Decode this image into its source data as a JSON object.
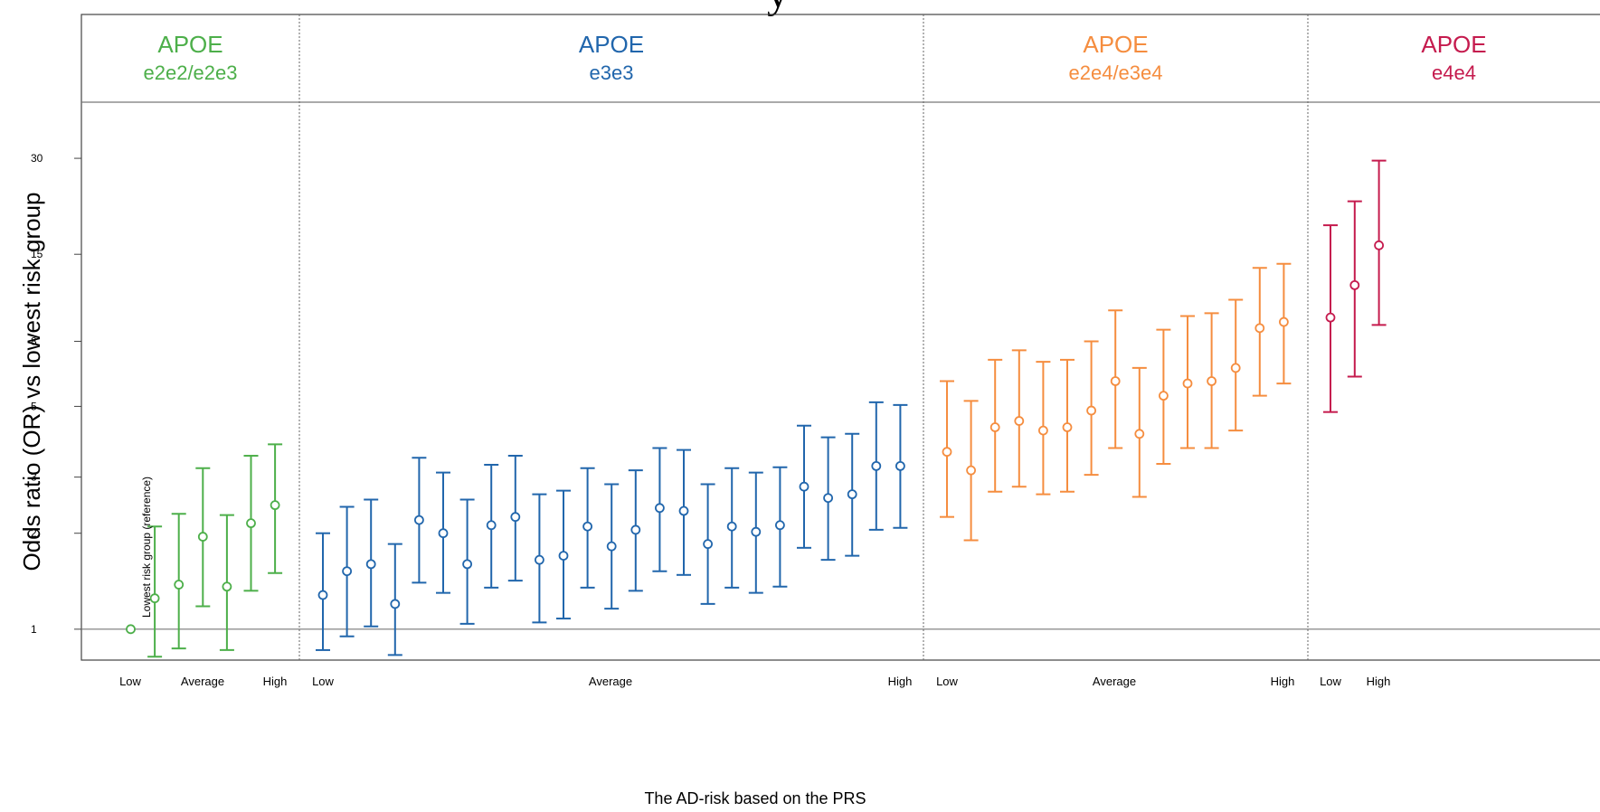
{
  "chart_data": {
    "type": "scatter",
    "title": "y",
    "ylabel": "Odds ratio (OR) vs lowest risk group",
    "xlabel": "The AD-risk based on the PRS",
    "yscale": "log",
    "ylim": [
      0.8,
      45
    ],
    "yticks": [
      1,
      2,
      3,
      5,
      8,
      15,
      30
    ],
    "reference_label": "Lowest risk group (reference)",
    "reference_value": 1,
    "groups": [
      {
        "name_line1": "APOE",
        "name_line2": "e2e2/e2e3",
        "color": "#4daf4a",
        "x_labels": [
          "Low",
          "Average",
          "High"
        ],
        "points": [
          {
            "or": 1.0,
            "lo": null,
            "hi": null
          },
          {
            "or": 1.25,
            "lo": 0.82,
            "hi": 2.1
          },
          {
            "or": 1.38,
            "lo": 0.87,
            "hi": 2.3
          },
          {
            "or": 1.95,
            "lo": 1.18,
            "hi": 3.2
          },
          {
            "or": 1.36,
            "lo": 0.86,
            "hi": 2.28
          },
          {
            "or": 2.15,
            "lo": 1.32,
            "hi": 3.5
          },
          {
            "or": 2.45,
            "lo": 1.5,
            "hi": 3.8
          }
        ]
      },
      {
        "name_line1": "APOE",
        "name_line2": "e3e3",
        "color": "#2166ac",
        "x_labels": [
          "Low",
          "Average",
          "High"
        ],
        "points": [
          {
            "or": 1.28,
            "lo": 0.86,
            "hi": 2.0
          },
          {
            "or": 1.52,
            "lo": 0.95,
            "hi": 2.42
          },
          {
            "or": 1.6,
            "lo": 1.02,
            "hi": 2.55
          },
          {
            "or": 1.2,
            "lo": 0.83,
            "hi": 1.85
          },
          {
            "or": 2.2,
            "lo": 1.4,
            "hi": 3.45
          },
          {
            "or": 2.0,
            "lo": 1.3,
            "hi": 3.1
          },
          {
            "or": 1.6,
            "lo": 1.04,
            "hi": 2.55
          },
          {
            "or": 2.12,
            "lo": 1.35,
            "hi": 3.28
          },
          {
            "or": 2.25,
            "lo": 1.42,
            "hi": 3.5
          },
          {
            "or": 1.65,
            "lo": 1.05,
            "hi": 2.65
          },
          {
            "or": 1.7,
            "lo": 1.08,
            "hi": 2.72
          },
          {
            "or": 2.1,
            "lo": 1.35,
            "hi": 3.2
          },
          {
            "or": 1.82,
            "lo": 1.16,
            "hi": 2.85
          },
          {
            "or": 2.05,
            "lo": 1.32,
            "hi": 3.15
          },
          {
            "or": 2.4,
            "lo": 1.52,
            "hi": 3.7
          },
          {
            "or": 2.35,
            "lo": 1.48,
            "hi": 3.65
          },
          {
            "or": 1.85,
            "lo": 1.2,
            "hi": 2.85
          },
          {
            "or": 2.1,
            "lo": 1.35,
            "hi": 3.2
          },
          {
            "or": 2.02,
            "lo": 1.3,
            "hi": 3.1
          },
          {
            "or": 2.12,
            "lo": 1.36,
            "hi": 3.22
          },
          {
            "or": 2.8,
            "lo": 1.8,
            "hi": 4.35
          },
          {
            "or": 2.58,
            "lo": 1.65,
            "hi": 4.0
          },
          {
            "or": 2.65,
            "lo": 1.7,
            "hi": 4.1
          },
          {
            "or": 3.25,
            "lo": 2.05,
            "hi": 5.15
          },
          {
            "or": 3.25,
            "lo": 2.08,
            "hi": 5.05
          }
        ]
      },
      {
        "name_line1": "APOE",
        "name_line2": "e2e4/e3e4",
        "color": "#f58d3f",
        "x_labels": [
          "Low",
          "Average",
          "High"
        ],
        "points": [
          {
            "or": 3.6,
            "lo": 2.25,
            "hi": 6.0
          },
          {
            "or": 3.15,
            "lo": 1.9,
            "hi": 5.2
          },
          {
            "or": 4.3,
            "lo": 2.7,
            "hi": 7.0
          },
          {
            "or": 4.5,
            "lo": 2.8,
            "hi": 7.5
          },
          {
            "or": 4.2,
            "lo": 2.65,
            "hi": 6.9
          },
          {
            "or": 4.3,
            "lo": 2.7,
            "hi": 7.0
          },
          {
            "or": 4.85,
            "lo": 3.05,
            "hi": 8.0
          },
          {
            "or": 6.0,
            "lo": 3.7,
            "hi": 10.0
          },
          {
            "or": 4.1,
            "lo": 2.6,
            "hi": 6.6
          },
          {
            "or": 5.4,
            "lo": 3.3,
            "hi": 8.7
          },
          {
            "or": 5.9,
            "lo": 3.7,
            "hi": 9.6
          },
          {
            "or": 6.0,
            "lo": 3.7,
            "hi": 9.8
          },
          {
            "or": 6.6,
            "lo": 4.2,
            "hi": 10.8
          },
          {
            "or": 8.8,
            "lo": 5.4,
            "hi": 13.6
          },
          {
            "or": 9.2,
            "lo": 5.9,
            "hi": 14.0
          }
        ]
      },
      {
        "name_line1": "APOE",
        "name_line2": "e4e4",
        "color": "#c51b4e",
        "x_labels": [
          "Low",
          "High"
        ],
        "points": [
          {
            "or": 9.5,
            "lo": 4.8,
            "hi": 18.5
          },
          {
            "or": 12.0,
            "lo": 6.2,
            "hi": 22.0
          },
          {
            "or": 16.0,
            "lo": 9.0,
            "hi": 29.5
          }
        ]
      }
    ]
  }
}
